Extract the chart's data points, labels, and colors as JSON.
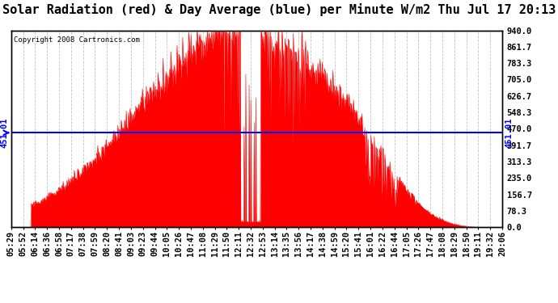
{
  "title": "Solar Radiation (red) & Day Average (blue) per Minute W/m2 Thu Jul 17 20:13",
  "copyright": "Copyright 2008 Cartronics.com",
  "y_max": 940.0,
  "y_min": 0.0,
  "y_ticks": [
    0.0,
    78.3,
    156.7,
    235.0,
    313.3,
    391.7,
    470.0,
    548.3,
    626.7,
    705.0,
    783.3,
    861.7,
    940.0
  ],
  "avg_line_value": 451.01,
  "avg_label": "451.01",
  "x_tick_labels": [
    "05:29",
    "05:52",
    "06:14",
    "06:36",
    "06:58",
    "07:17",
    "07:38",
    "07:59",
    "08:20",
    "08:41",
    "09:03",
    "09:23",
    "09:44",
    "10:05",
    "10:26",
    "10:47",
    "11:08",
    "11:29",
    "11:50",
    "12:11",
    "12:32",
    "12:53",
    "13:14",
    "13:35",
    "13:56",
    "14:17",
    "14:38",
    "14:59",
    "15:20",
    "15:41",
    "16:01",
    "16:22",
    "16:44",
    "17:05",
    "17:26",
    "17:47",
    "18:08",
    "18:29",
    "18:50",
    "19:11",
    "19:32",
    "20:06"
  ],
  "fill_color": "#FF0000",
  "line_color": "#FF0000",
  "avg_line_color": "#0000FF",
  "background_color": "#FFFFFF",
  "grid_color": "#BBBBBB",
  "title_fontsize": 11,
  "tick_fontsize": 7.5,
  "border_color": "#000000"
}
